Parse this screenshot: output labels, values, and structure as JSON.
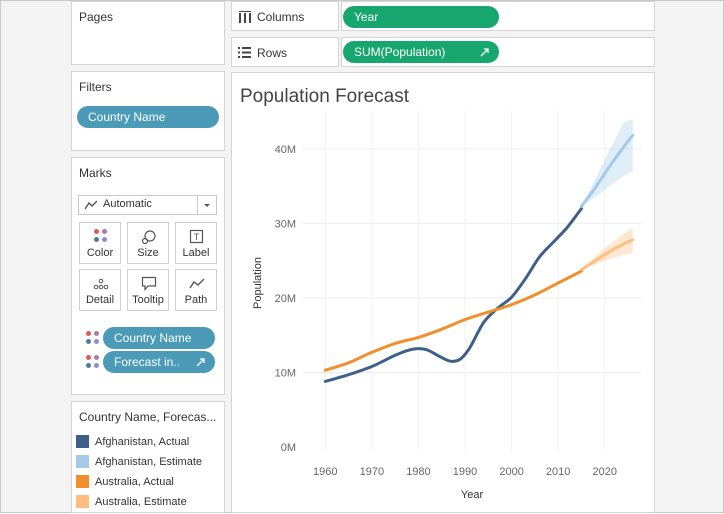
{
  "pages_card": {
    "title": "Pages"
  },
  "filters_card": {
    "title": "Filters",
    "pill": "Country Name"
  },
  "columns_shelf": {
    "label": "Columns",
    "pill": "Year"
  },
  "rows_shelf": {
    "label": "Rows",
    "pill": "SUM(Population)"
  },
  "marks_card": {
    "title": "Marks",
    "mark_type": "Automatic",
    "buttons": {
      "color": "Color",
      "size": "Size",
      "label": "Label",
      "detail": "Detail",
      "tooltip": "Tooltip",
      "path": "Path"
    },
    "fields": [
      "Country Name",
      "Forecast in.."
    ]
  },
  "legend_card": {
    "title": "Country Name, Forecas...",
    "items": [
      {
        "label": "Afghanistan, Actual",
        "color": "#3d5f8a"
      },
      {
        "label": "Afghanistan, Estimate",
        "color": "#a3cbe9"
      },
      {
        "label": "Australia, Actual",
        "color": "#f28e2b"
      },
      {
        "label": "Australia, Estimate",
        "color": "#ffbe7d"
      }
    ]
  },
  "chart_data": {
    "type": "line",
    "title": "Population Forecast",
    "xlabel": "Year",
    "ylabel": "Population",
    "xlim": [
      1955,
      2028
    ],
    "ylim": [
      0,
      44000000
    ],
    "x_ticks": [
      1960,
      1970,
      1980,
      1990,
      2000,
      2010,
      2020
    ],
    "x_tick_labels": [
      "1960",
      "1970",
      "1980",
      "1990",
      "2000",
      "2010",
      "2020"
    ],
    "y_ticks": [
      0,
      10000000,
      20000000,
      30000000,
      40000000
    ],
    "y_tick_labels": [
      "0M",
      "10M",
      "20M",
      "30M",
      "40M"
    ],
    "grid": true,
    "series": [
      {
        "name": "Afghanistan, Actual",
        "color": "#3d5f8a",
        "x": [
          1960,
          1965,
          1970,
          1975,
          1978,
          1980,
          1982,
          1985,
          1987,
          1989,
          1991,
          1994,
          1997,
          2000,
          2003,
          2006,
          2009,
          2012,
          2015
        ],
        "y": [
          8800000,
          9700000,
          10800000,
          12300000,
          13000000,
          13200000,
          13000000,
          12000000,
          11500000,
          11800000,
          13300000,
          16700000,
          18600000,
          20100000,
          22600000,
          25500000,
          27500000,
          29500000,
          32000000
        ]
      },
      {
        "name": "Afghanistan, Estimate",
        "color": "#a3cbe9",
        "x": [
          2015,
          2018,
          2021,
          2024,
          2026
        ],
        "y": [
          32300000,
          34800000,
          37600000,
          40200000,
          41800000
        ],
        "lower": [
          32300000,
          33500000,
          35000000,
          36300000,
          37000000
        ],
        "upper": [
          32300000,
          36000000,
          39800000,
          43500000,
          44000000
        ]
      },
      {
        "name": "Australia, Actual",
        "color": "#f28e2b",
        "x": [
          1960,
          1965,
          1970,
          1975,
          1980,
          1985,
          1990,
          1995,
          2000,
          2005,
          2010,
          2015
        ],
        "y": [
          10300000,
          11300000,
          12700000,
          13900000,
          14700000,
          15800000,
          17100000,
          18100000,
          19100000,
          20400000,
          22000000,
          23600000
        ]
      },
      {
        "name": "Australia, Estimate",
        "color": "#ffbe7d",
        "x": [
          2015,
          2018,
          2021,
          2024,
          2026
        ],
        "y": [
          23800000,
          25000000,
          26200000,
          27200000,
          27800000
        ],
        "lower": [
          23800000,
          24500000,
          25200000,
          25800000,
          26000000
        ],
        "upper": [
          23800000,
          25600000,
          27200000,
          28600000,
          29400000
        ]
      }
    ]
  }
}
